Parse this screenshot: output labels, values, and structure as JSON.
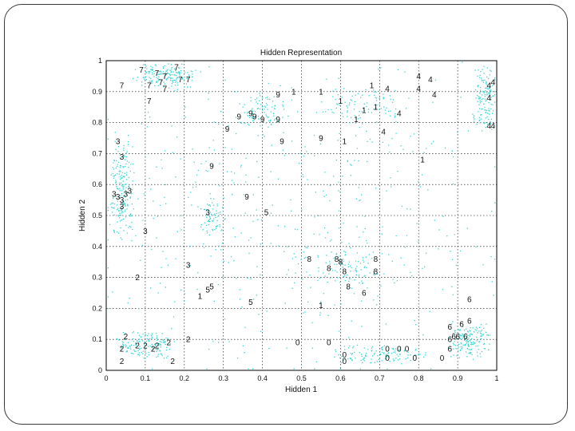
{
  "chart_data": {
    "type": "scatter",
    "title": "Hidden Representation",
    "xlabel": "Hidden 1",
    "ylabel": "Hidden 2",
    "xlim": [
      0,
      1
    ],
    "ylim": [
      0,
      1
    ],
    "xticks": [
      "0",
      "0.1",
      "0.2",
      "0.3",
      "0.4",
      "0.5",
      "0.6",
      "0.7",
      "0.8",
      "0.9",
      "1"
    ],
    "yticks": [
      "0",
      "0.1",
      "0.2",
      "0.3",
      "0.4",
      "0.5",
      "0.6",
      "0.7",
      "0.8",
      "0.9",
      "1"
    ],
    "grid": true,
    "point_color": "#33d6d6",
    "labeled_points": [
      {
        "label": "7",
        "x": 0.09,
        "y": 0.97
      },
      {
        "label": "7",
        "x": 0.13,
        "y": 0.96
      },
      {
        "label": "7",
        "x": 0.15,
        "y": 0.95
      },
      {
        "label": "7",
        "x": 0.18,
        "y": 0.98
      },
      {
        "label": "7",
        "x": 0.19,
        "y": 0.94
      },
      {
        "label": "7",
        "x": 0.21,
        "y": 0.94
      },
      {
        "label": "7",
        "x": 0.04,
        "y": 0.92
      },
      {
        "label": "7",
        "x": 0.11,
        "y": 0.92
      },
      {
        "label": "7",
        "x": 0.14,
        "y": 0.93
      },
      {
        "label": "7",
        "x": 0.15,
        "y": 0.91
      },
      {
        "label": "7",
        "x": 0.11,
        "y": 0.87
      },
      {
        "label": "4",
        "x": 0.8,
        "y": 0.95
      },
      {
        "label": "4",
        "x": 0.83,
        "y": 0.94
      },
      {
        "label": "4",
        "x": 0.8,
        "y": 0.91
      },
      {
        "label": "4",
        "x": 0.84,
        "y": 0.89
      },
      {
        "label": "4",
        "x": 0.72,
        "y": 0.91
      },
      {
        "label": "4",
        "x": 0.75,
        "y": 0.83
      },
      {
        "label": "4",
        "x": 0.71,
        "y": 0.77
      },
      {
        "label": "4",
        "x": 0.99,
        "y": 0.93
      },
      {
        "label": "4",
        "x": 0.98,
        "y": 0.92
      },
      {
        "label": "4",
        "x": 0.98,
        "y": 0.88
      },
      {
        "label": "4",
        "x": 0.98,
        "y": 0.79
      },
      {
        "label": "4",
        "x": 0.99,
        "y": 0.79
      },
      {
        "label": "1",
        "x": 0.48,
        "y": 0.9
      },
      {
        "label": "1",
        "x": 0.55,
        "y": 0.9
      },
      {
        "label": "1",
        "x": 0.6,
        "y": 0.87
      },
      {
        "label": "1",
        "x": 0.68,
        "y": 0.92
      },
      {
        "label": "1",
        "x": 0.66,
        "y": 0.84
      },
      {
        "label": "1",
        "x": 0.69,
        "y": 0.85
      },
      {
        "label": "1",
        "x": 0.64,
        "y": 0.81
      },
      {
        "label": "1",
        "x": 0.61,
        "y": 0.74
      },
      {
        "label": "1",
        "x": 0.81,
        "y": 0.68
      },
      {
        "label": "1",
        "x": 0.55,
        "y": 0.21
      },
      {
        "label": "1",
        "x": 0.24,
        "y": 0.24
      },
      {
        "label": "9",
        "x": 0.44,
        "y": 0.89
      },
      {
        "label": "9",
        "x": 0.34,
        "y": 0.82
      },
      {
        "label": "9",
        "x": 0.37,
        "y": 0.83
      },
      {
        "label": "9",
        "x": 0.38,
        "y": 0.82
      },
      {
        "label": "9",
        "x": 0.4,
        "y": 0.81
      },
      {
        "label": "9",
        "x": 0.44,
        "y": 0.81
      },
      {
        "label": "9",
        "x": 0.31,
        "y": 0.78
      },
      {
        "label": "9",
        "x": 0.45,
        "y": 0.74
      },
      {
        "label": "9",
        "x": 0.55,
        "y": 0.75
      },
      {
        "label": "9",
        "x": 0.27,
        "y": 0.66
      },
      {
        "label": "9",
        "x": 0.36,
        "y": 0.56
      },
      {
        "label": "3",
        "x": 0.03,
        "y": 0.74
      },
      {
        "label": "3",
        "x": 0.04,
        "y": 0.69
      },
      {
        "label": "3",
        "x": 0.02,
        "y": 0.57
      },
      {
        "label": "3",
        "x": 0.03,
        "y": 0.56
      },
      {
        "label": "3",
        "x": 0.04,
        "y": 0.55
      },
      {
        "label": "3",
        "x": 0.05,
        "y": 0.57
      },
      {
        "label": "3",
        "x": 0.06,
        "y": 0.58
      },
      {
        "label": "3",
        "x": 0.04,
        "y": 0.53
      },
      {
        "label": "3",
        "x": 0.1,
        "y": 0.45
      },
      {
        "label": "3",
        "x": 0.21,
        "y": 0.34
      },
      {
        "label": "3",
        "x": 0.26,
        "y": 0.51
      },
      {
        "label": "5",
        "x": 0.41,
        "y": 0.51
      },
      {
        "label": "5",
        "x": 0.26,
        "y": 0.26
      },
      {
        "label": "5",
        "x": 0.27,
        "y": 0.27
      },
      {
        "label": "5",
        "x": 0.37,
        "y": 0.22
      },
      {
        "label": "2",
        "x": 0.08,
        "y": 0.3
      },
      {
        "label": "2",
        "x": 0.05,
        "y": 0.11
      },
      {
        "label": "2",
        "x": 0.08,
        "y": 0.08
      },
      {
        "label": "2",
        "x": 0.1,
        "y": 0.08
      },
      {
        "label": "2",
        "x": 0.12,
        "y": 0.07
      },
      {
        "label": "2",
        "x": 0.13,
        "y": 0.08
      },
      {
        "label": "2",
        "x": 0.16,
        "y": 0.09
      },
      {
        "label": "2",
        "x": 0.21,
        "y": 0.1
      },
      {
        "label": "2",
        "x": 0.04,
        "y": 0.07
      },
      {
        "label": "2",
        "x": 0.04,
        "y": 0.03
      },
      {
        "label": "2",
        "x": 0.17,
        "y": 0.03
      },
      {
        "label": "8",
        "x": 0.59,
        "y": 0.36
      },
      {
        "label": "8",
        "x": 0.6,
        "y": 0.35
      },
      {
        "label": "8",
        "x": 0.69,
        "y": 0.36
      },
      {
        "label": "8",
        "x": 0.57,
        "y": 0.33
      },
      {
        "label": "8",
        "x": 0.61,
        "y": 0.32
      },
      {
        "label": "8",
        "x": 0.69,
        "y": 0.32
      },
      {
        "label": "8",
        "x": 0.52,
        "y": 0.36
      },
      {
        "label": "8",
        "x": 0.62,
        "y": 0.27
      },
      {
        "label": "6",
        "x": 0.66,
        "y": 0.25
      },
      {
        "label": "6",
        "x": 0.93,
        "y": 0.23
      },
      {
        "label": "6",
        "x": 0.93,
        "y": 0.16
      },
      {
        "label": "6",
        "x": 0.91,
        "y": 0.15
      },
      {
        "label": "6",
        "x": 0.88,
        "y": 0.14
      },
      {
        "label": "6",
        "x": 0.89,
        "y": 0.11
      },
      {
        "label": "6",
        "x": 0.9,
        "y": 0.11
      },
      {
        "label": "6",
        "x": 0.88,
        "y": 0.1
      },
      {
        "label": "6",
        "x": 0.92,
        "y": 0.11
      },
      {
        "label": "6",
        "x": 0.88,
        "y": 0.07
      },
      {
        "label": "0",
        "x": 0.49,
        "y": 0.09
      },
      {
        "label": "0",
        "x": 0.57,
        "y": 0.09
      },
      {
        "label": "0",
        "x": 0.61,
        "y": 0.05
      },
      {
        "label": "0",
        "x": 0.61,
        "y": 0.03
      },
      {
        "label": "0",
        "x": 0.72,
        "y": 0.07
      },
      {
        "label": "0",
        "x": 0.75,
        "y": 0.07
      },
      {
        "label": "0",
        "x": 0.77,
        "y": 0.07
      },
      {
        "label": "0",
        "x": 0.72,
        "y": 0.04
      },
      {
        "label": "0",
        "x": 0.79,
        "y": 0.04
      },
      {
        "label": "0",
        "x": 0.86,
        "y": 0.04
      }
    ]
  }
}
